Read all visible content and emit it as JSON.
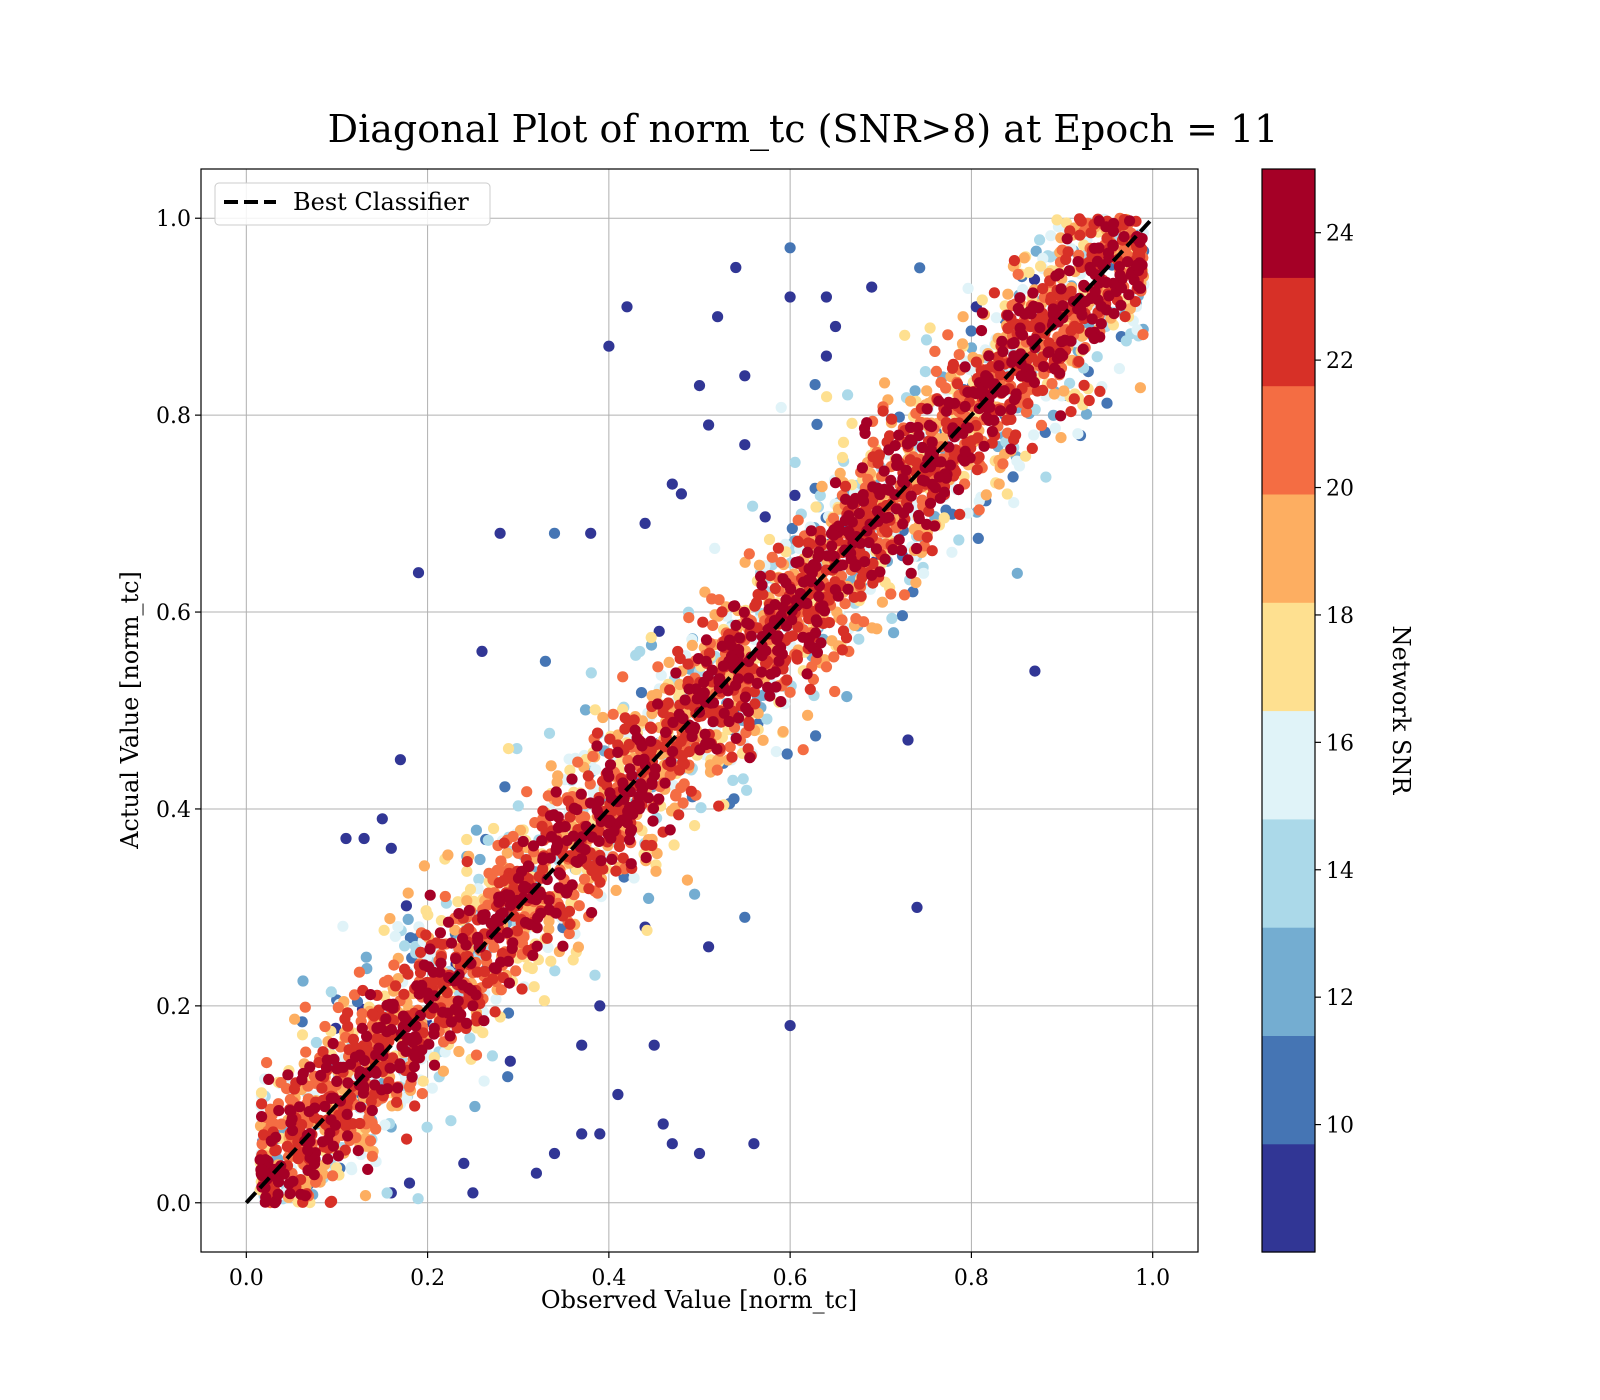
{
  "chart_data": {
    "type": "scatter",
    "title": "Diagonal Plot of norm_tc (SNR>8) at Epoch = 11",
    "xlabel": "Observed Value [norm_tc]",
    "ylabel": "Actual Value [norm_tc]",
    "xlim": [
      -0.05,
      1.05
    ],
    "ylim": [
      -0.05,
      1.05
    ],
    "xticks": [
      "0.0",
      "0.2",
      "0.4",
      "0.6",
      "0.8",
      "1.0"
    ],
    "yticks": [
      "0.0",
      "0.2",
      "0.4",
      "0.6",
      "0.8",
      "1.0"
    ],
    "grid": true,
    "legend": {
      "placement": "upper-left",
      "entries": [
        {
          "label": "Best Classifier",
          "style": "dashed",
          "color": "#000000"
        }
      ]
    },
    "reference_line": {
      "name": "Best Classifier",
      "x": [
        0.0,
        1.0
      ],
      "y": [
        0.0,
        1.0
      ]
    },
    "colorbar": {
      "label": "Network SNR",
      "ticks": [
        "10",
        "12",
        "14",
        "16",
        "18",
        "20",
        "22",
        "24"
      ],
      "colors": [
        "#313695",
        "#4575b4",
        "#74add1",
        "#abd9e9",
        "#e0f3f8",
        "#fee090",
        "#fdae61",
        "#f46d43",
        "#d73027",
        "#a50026"
      ]
    },
    "cloud": {
      "x_range": [
        0.01,
        0.99
      ],
      "diagonal_spread_sd": 0.055,
      "snr_range": [
        8,
        25
      ],
      "spread_shrinks_with_snr": true
    },
    "outliers": [
      [
        0.19,
        0.64
      ],
      [
        0.28,
        0.68
      ],
      [
        0.34,
        0.68
      ],
      [
        0.38,
        0.68
      ],
      [
        0.42,
        0.91
      ],
      [
        0.4,
        0.87
      ],
      [
        0.52,
        0.9
      ],
      [
        0.54,
        0.95
      ],
      [
        0.6,
        0.97
      ],
      [
        0.6,
        0.92
      ],
      [
        0.55,
        0.84
      ],
      [
        0.5,
        0.83
      ],
      [
        0.51,
        0.79
      ],
      [
        0.55,
        0.77
      ],
      [
        0.47,
        0.73
      ],
      [
        0.48,
        0.72
      ],
      [
        0.44,
        0.69
      ],
      [
        0.26,
        0.56
      ],
      [
        0.33,
        0.55
      ],
      [
        0.17,
        0.45
      ],
      [
        0.15,
        0.39
      ],
      [
        0.11,
        0.37
      ],
      [
        0.13,
        0.37
      ],
      [
        0.16,
        0.36
      ],
      [
        0.87,
        0.54
      ],
      [
        0.73,
        0.47
      ],
      [
        0.74,
        0.3
      ],
      [
        0.51,
        0.26
      ],
      [
        0.55,
        0.29
      ],
      [
        0.44,
        0.28
      ],
      [
        0.6,
        0.18
      ],
      [
        0.39,
        0.2
      ],
      [
        0.41,
        0.11
      ],
      [
        0.45,
        0.16
      ],
      [
        0.37,
        0.16
      ],
      [
        0.34,
        0.05
      ],
      [
        0.32,
        0.03
      ],
      [
        0.37,
        0.07
      ],
      [
        0.39,
        0.07
      ],
      [
        0.46,
        0.08
      ],
      [
        0.47,
        0.06
      ],
      [
        0.5,
        0.05
      ],
      [
        0.56,
        0.06
      ],
      [
        0.25,
        0.01
      ],
      [
        0.24,
        0.04
      ],
      [
        0.18,
        0.02
      ],
      [
        0.16,
        0.01
      ],
      [
        0.65,
        0.89
      ],
      [
        0.64,
        0.86
      ],
      [
        0.69,
        0.93
      ],
      [
        0.64,
        0.92
      ]
    ]
  }
}
